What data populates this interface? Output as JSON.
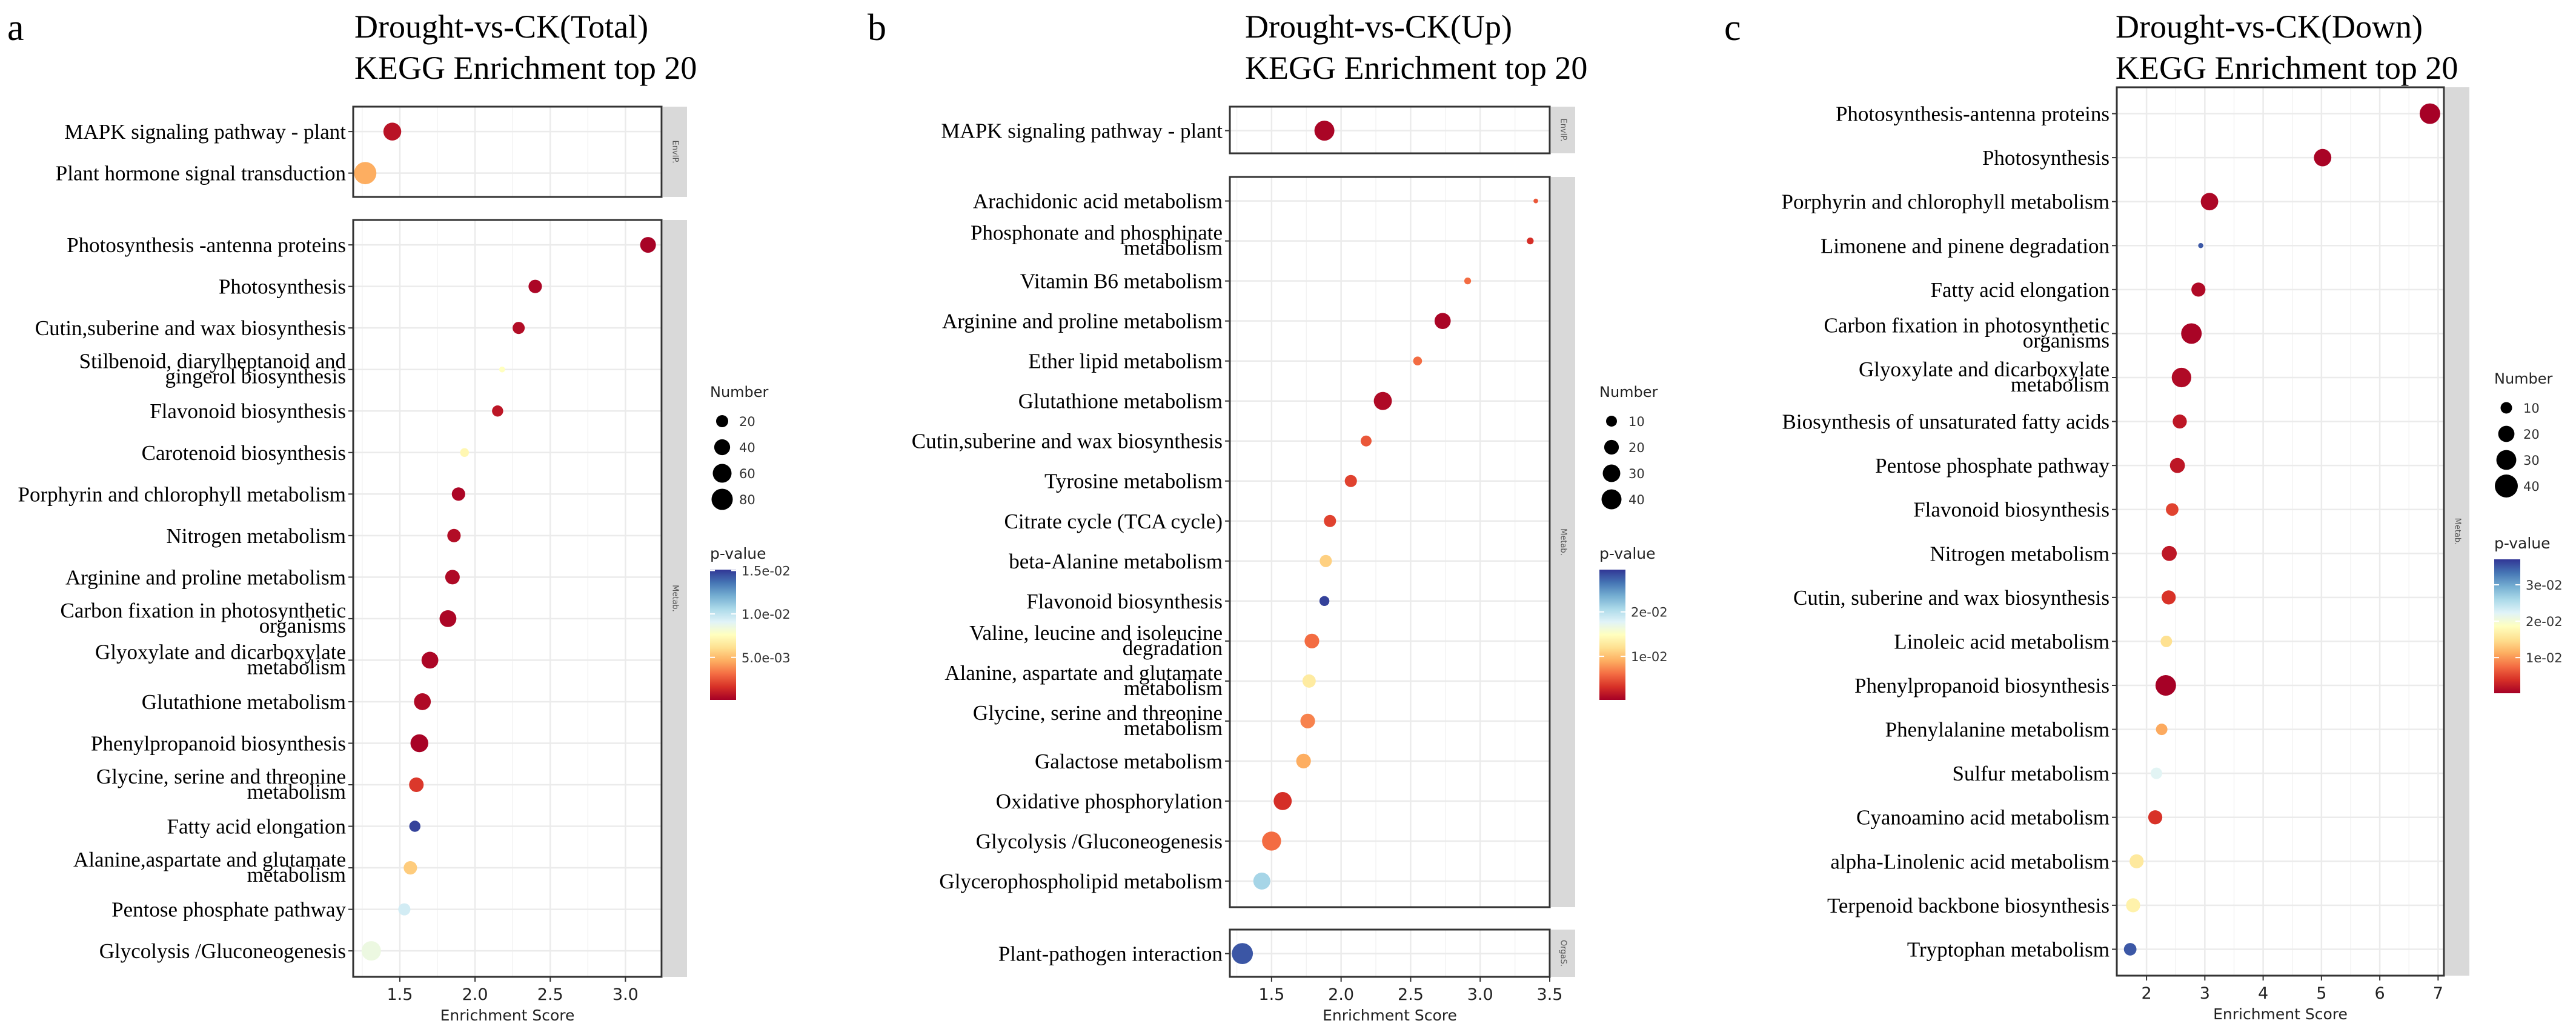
{
  "colorscale": [
    "#a50026",
    "#d73027",
    "#f46d43",
    "#fdae61",
    "#fee090",
    "#ffffbf",
    "#e0f3f8",
    "#abd9e9",
    "#74add1",
    "#4575b4",
    "#313695"
  ],
  "chart_data": [
    {
      "type": "scatter",
      "panel_label": "a",
      "title": [
        "Drought-vs-CK(Total)",
        "KEGG Enrichment top 20"
      ],
      "xlabel": "Enrichment Score",
      "xlim": [
        1.19,
        3.24
      ],
      "xticks": [
        1.5,
        2.0,
        2.5,
        3.0
      ],
      "xtick_labels": [
        "1.5",
        "2.0",
        "2.5",
        "3.0"
      ],
      "grid": true,
      "legend_position": "right",
      "facets": [
        {
          "name": "EnvIP.",
          "rows": [
            {
              "pathway": "MAPK signaling pathway - plant",
              "enrichment_score": 1.45,
              "number": 53,
              "p_value": 0.0007
            },
            {
              "pathway": "Plant hormone signal transduction",
              "enrichment_score": 1.27,
              "number": 90,
              "p_value": 0.0046
            }
          ]
        },
        {
          "name": "Metab.",
          "rows": [
            {
              "pathway": "Photosynthesis -antenna proteins",
              "enrichment_score": 3.15,
              "number": 39,
              "p_value": 0.0002
            },
            {
              "pathway": "Photosynthesis",
              "enrichment_score": 2.4,
              "number": 26,
              "p_value": 0.0003
            },
            {
              "pathway": "Cutin,suberine and wax biosynthesis",
              "enrichment_score": 2.29,
              "number": 20,
              "p_value": 0.0005
            },
            {
              "pathway": "Stilbenoid, diarylheptanoid and\ngingerol biosynthesis",
              "enrichment_score": 2.18,
              "number": 2,
              "p_value": 0.0076
            },
            {
              "pathway": "Flavonoid biosynthesis",
              "enrichment_score": 2.15,
              "number": 16,
              "p_value": 0.0008
            },
            {
              "pathway": "Carotenoid biosynthesis",
              "enrichment_score": 1.93,
              "number": 8,
              "p_value": 0.0072
            },
            {
              "pathway": "Porphyrin and chlorophyll metabolism",
              "enrichment_score": 1.89,
              "number": 26,
              "p_value": 0.0003
            },
            {
              "pathway": "Nitrogen metabolism",
              "enrichment_score": 1.86,
              "number": 26,
              "p_value": 0.0005
            },
            {
              "pathway": "Arginine and proline metabolism",
              "enrichment_score": 1.85,
              "number": 32,
              "p_value": 0.0004
            },
            {
              "pathway": "Carbon fixation in photosynthetic\norganisms",
              "enrichment_score": 1.82,
              "number": 46,
              "p_value": 0.0003
            },
            {
              "pathway": "Glyoxylate and dicarboxylate\nmetabolism",
              "enrichment_score": 1.7,
              "number": 46,
              "p_value": 0.0003
            },
            {
              "pathway": "Glutathione metabolism",
              "enrichment_score": 1.65,
              "number": 46,
              "p_value": 0.0004
            },
            {
              "pathway": "Phenylpropanoid biosynthesis",
              "enrichment_score": 1.63,
              "number": 53,
              "p_value": 0.0002
            },
            {
              "pathway": "Glycine, serine and threonine\nmetabolism",
              "enrichment_score": 1.61,
              "number": 32,
              "p_value": 0.0018
            },
            {
              "pathway": "Fatty acid elongation",
              "enrichment_score": 1.6,
              "number": 16,
              "p_value": 0.0148
            },
            {
              "pathway": "Alanine,aspartate and glutamate\nmetabolism",
              "enrichment_score": 1.57,
              "number": 26,
              "p_value": 0.0055
            },
            {
              "pathway": "Pentose phosphate pathway",
              "enrichment_score": 1.53,
              "number": 20,
              "p_value": 0.0095
            },
            {
              "pathway": "Glycolysis /Gluconeogenesis",
              "enrichment_score": 1.31,
              "number": 65,
              "p_value": 0.0085
            }
          ]
        }
      ],
      "size_legend": {
        "title": "Number",
        "values": [
          20,
          40,
          60,
          80
        ],
        "labels": [
          "20",
          "40",
          "60",
          "80"
        ]
      },
      "color_legend": {
        "title": "p-value",
        "range": [
          0.0001,
          0.0151
        ],
        "ticks": [
          0.005,
          0.01,
          0.015
        ],
        "tick_labels": [
          "5.0e-03",
          "1.0e-02",
          "1.5e-02"
        ]
      }
    },
    {
      "type": "scatter",
      "panel_label": "b",
      "title": [
        "Drought-vs-CK(Up)",
        "KEGG Enrichment top 20"
      ],
      "xlabel": "Enrichment Score",
      "xlim": [
        1.2,
        3.5
      ],
      "xticks": [
        1.5,
        2.0,
        2.5,
        3.0,
        3.5
      ],
      "xtick_labels": [
        "1.5",
        "2.0",
        "2.5",
        "3.0",
        "3.5"
      ],
      "grid": true,
      "legend_position": "right",
      "facets": [
        {
          "name": "EnvIP.",
          "rows": [
            {
              "pathway": "MAPK signaling pathway - plant",
              "enrichment_score": 1.88,
              "number": 40,
              "p_value": 0.0005
            }
          ]
        },
        {
          "name": "Metab.",
          "rows": [
            {
              "pathway": "Arachidonic acid metabolism",
              "enrichment_score": 3.4,
              "number": 1,
              "p_value": 0.005
            },
            {
              "pathway": "Phosphonate and phosphinate\nmetabolism",
              "enrichment_score": 3.36,
              "number": 3,
              "p_value": 0.003
            },
            {
              "pathway": "Vitamin B6 metabolism",
              "enrichment_score": 2.91,
              "number": 3,
              "p_value": 0.006
            },
            {
              "pathway": "Arginine and proline metabolism",
              "enrichment_score": 2.73,
              "number": 25,
              "p_value": 0.0005
            },
            {
              "pathway": "Ether lipid metabolism",
              "enrichment_score": 2.55,
              "number": 6,
              "p_value": 0.006
            },
            {
              "pathway": "Glutathione metabolism",
              "enrichment_score": 2.3,
              "number": 32,
              "p_value": 0.0008
            },
            {
              "pathway": "Cutin,suberine and wax biosynthesis",
              "enrichment_score": 2.18,
              "number": 10,
              "p_value": 0.005
            },
            {
              "pathway": "Tyrosine metabolism",
              "enrichment_score": 2.07,
              "number": 13,
              "p_value": 0.004
            },
            {
              "pathway": "Citrate cycle (TCA cycle)",
              "enrichment_score": 1.92,
              "number": 13,
              "p_value": 0.004
            },
            {
              "pathway": "beta-Alanine metabolism",
              "enrichment_score": 1.89,
              "number": 13,
              "p_value": 0.011
            },
            {
              "pathway": "Flavonoid biosynthesis",
              "enrichment_score": 1.88,
              "number": 8,
              "p_value": 0.029
            },
            {
              "pathway": "Valine, leucine and isoleucine\ndegradation",
              "enrichment_score": 1.79,
              "number": 20,
              "p_value": 0.006
            },
            {
              "pathway": "Alanine, aspartate and glutamate\nmetabolism",
              "enrichment_score": 1.77,
              "number": 16,
              "p_value": 0.013
            },
            {
              "pathway": "Glycine, serine and threonine\nmetabolism",
              "enrichment_score": 1.76,
              "number": 20,
              "p_value": 0.007
            },
            {
              "pathway": "Galactose metabolism",
              "enrichment_score": 1.73,
              "number": 20,
              "p_value": 0.009
            },
            {
              "pathway": "Oxidative phosphorylation",
              "enrichment_score": 1.58,
              "number": 32,
              "p_value": 0.003
            },
            {
              "pathway": "Glycolysis /Gluconeogenesis",
              "enrichment_score": 1.5,
              "number": 36,
              "p_value": 0.006
            },
            {
              "pathway": "Glycerophospholipid metabolism",
              "enrichment_score": 1.43,
              "number": 28,
              "p_value": 0.021
            }
          ]
        },
        {
          "name": "OrgaS.",
          "rows": [
            {
              "pathway": "Plant-pathogen interaction",
              "enrichment_score": 1.29,
              "number": 45,
              "p_value": 0.028
            }
          ]
        }
      ],
      "size_legend": {
        "title": "Number",
        "values": [
          10,
          20,
          30,
          40
        ],
        "labels": [
          "10",
          "20",
          "30",
          "40"
        ]
      },
      "color_legend": {
        "title": "p-value",
        "range": [
          0.0002,
          0.0295
        ],
        "ticks": [
          0.01,
          0.02
        ],
        "tick_labels": [
          "1e-02",
          "2e-02"
        ]
      }
    },
    {
      "type": "scatter",
      "panel_label": "c",
      "title": [
        "Drought-vs-CK(Down)",
        "KEGG Enrichment top 20"
      ],
      "xlabel": "Enrichment Score",
      "xlim": [
        1.49,
        7.1
      ],
      "xticks": [
        2,
        3,
        4,
        5,
        6,
        7
      ],
      "xtick_labels": [
        "2",
        "3",
        "4",
        "5",
        "6",
        "7"
      ],
      "grid": true,
      "legend_position": "right",
      "facets": [
        {
          "name": "Metab.",
          "rows": [
            {
              "pathway": "Photosynthesis-antenna proteins",
              "enrichment_score": 6.86,
              "number": 32,
              "p_value": 0.0003
            },
            {
              "pathway": "Photosynthesis",
              "enrichment_score": 5.02,
              "number": 23,
              "p_value": 0.0005
            },
            {
              "pathway": "Porphyrin and chlorophyll metabolism",
              "enrichment_score": 3.08,
              "number": 23,
              "p_value": 0.0007
            },
            {
              "pathway": "Limonene and pinene degradation",
              "enrichment_score": 2.93,
              "number": 2,
              "p_value": 0.035
            },
            {
              "pathway": "Fatty acid elongation",
              "enrichment_score": 2.89,
              "number": 15,
              "p_value": 0.001
            },
            {
              "pathway": "Carbon fixation in photosynthetic\norganisms",
              "enrichment_score": 2.77,
              "number": 32,
              "p_value": 0.0005
            },
            {
              "pathway": "Glyoxylate and dicarboxylate\nmetabolism",
              "enrichment_score": 2.6,
              "number": 29,
              "p_value": 0.001
            },
            {
              "pathway": "Biosynthesis of unsaturated fatty acids",
              "enrichment_score": 2.57,
              "number": 15,
              "p_value": 0.002
            },
            {
              "pathway": "Pentose phosphate pathway",
              "enrichment_score": 2.53,
              "number": 17,
              "p_value": 0.002
            },
            {
              "pathway": "Flavonoid biosynthesis",
              "enrichment_score": 2.44,
              "number": 12,
              "p_value": 0.005
            },
            {
              "pathway": "Nitrogen metabolism",
              "enrichment_score": 2.39,
              "number": 17,
              "p_value": 0.002
            },
            {
              "pathway": "Cutin, suberine and wax biosynthesis",
              "enrichment_score": 2.38,
              "number": 15,
              "p_value": 0.004
            },
            {
              "pathway": "Linoleic acid metabolism",
              "enrichment_score": 2.34,
              "number": 10,
              "p_value": 0.015
            },
            {
              "pathway": "Phenylpropanoid biosynthesis",
              "enrichment_score": 2.33,
              "number": 32,
              "p_value": 0.0003
            },
            {
              "pathway": "Phenylalanine metabolism",
              "enrichment_score": 2.26,
              "number": 10,
              "p_value": 0.011
            },
            {
              "pathway": "Sulfur metabolism",
              "enrichment_score": 2.17,
              "number": 10,
              "p_value": 0.022
            },
            {
              "pathway": "Cyanoamino acid metabolism",
              "enrichment_score": 2.15,
              "number": 15,
              "p_value": 0.004
            },
            {
              "pathway": "alpha-Linolenic acid metabolism",
              "enrichment_score": 1.83,
              "number": 15,
              "p_value": 0.016
            },
            {
              "pathway": "Terpenoid backbone biosynthesis",
              "enrichment_score": 1.77,
              "number": 15,
              "p_value": 0.017
            },
            {
              "pathway": "Tryptophan metabolism",
              "enrichment_score": 1.72,
              "number": 12,
              "p_value": 0.035
            }
          ]
        }
      ],
      "size_legend": {
        "title": "Number",
        "values": [
          10,
          20,
          30,
          40
        ],
        "labels": [
          "10",
          "20",
          "30",
          "40"
        ]
      },
      "color_legend": {
        "title": "p-value",
        "range": [
          0.0002,
          0.037
        ],
        "ticks": [
          0.01,
          0.02,
          0.03
        ],
        "tick_labels": [
          "1e-02",
          "2e-02",
          "3e-02"
        ]
      }
    }
  ]
}
